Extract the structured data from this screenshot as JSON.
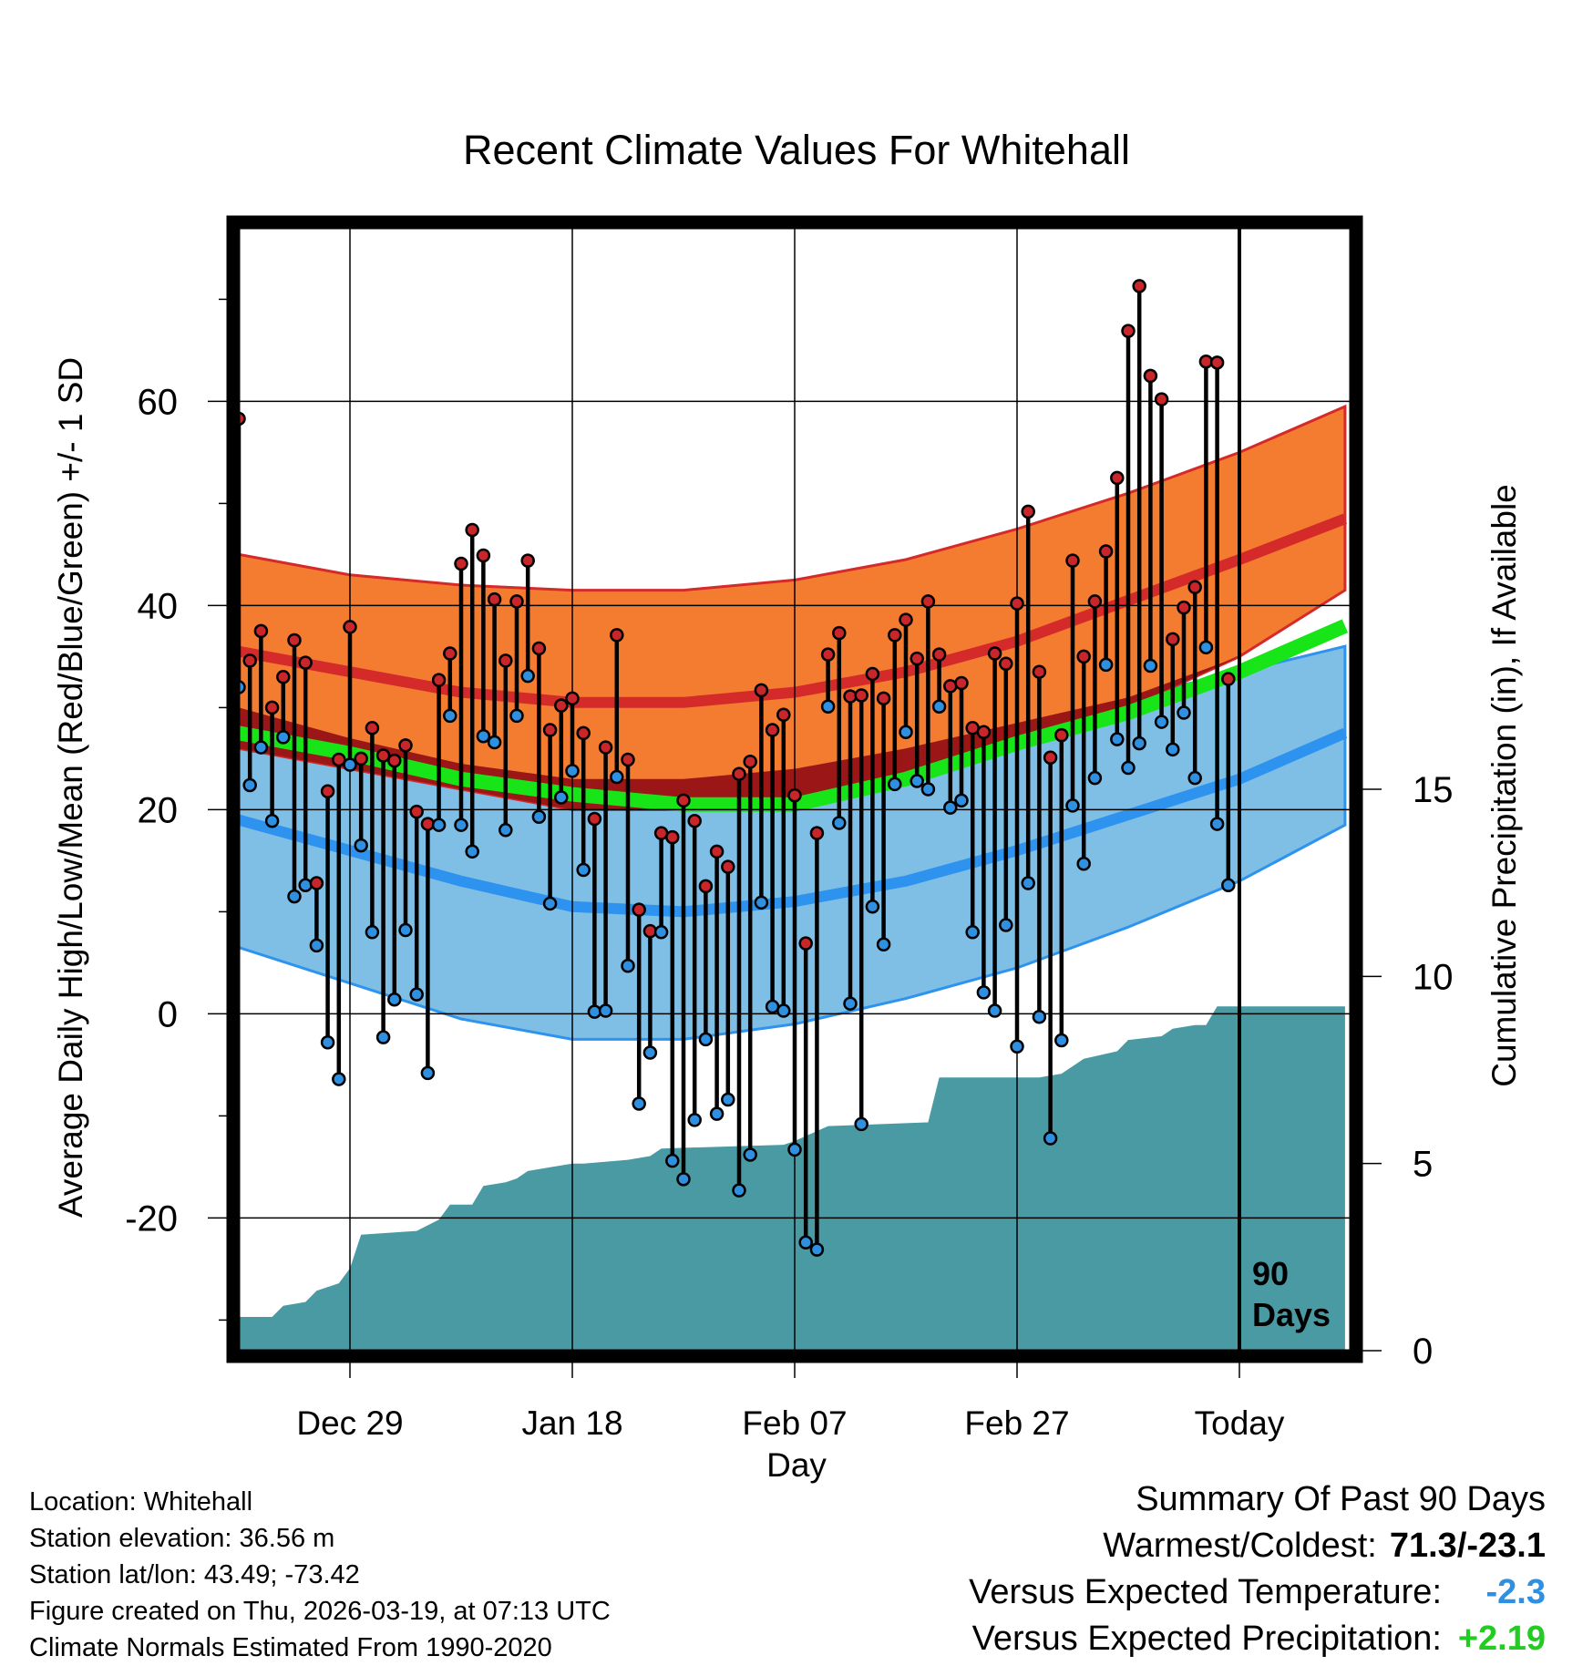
{
  "chart_data": {
    "type": "climate-range",
    "title": "Recent Climate Values For Whitehall",
    "xlabel": "Day",
    "ylabel": "Average Daily High/Low/Mean (Red/Blue/Green) +/- 1 SD",
    "y2label": "Cumulative Precipitation (in), If Available",
    "ylim": [
      -33,
      77
    ],
    "y2lim": [
      0,
      30
    ],
    "x_days": 100,
    "x_tick_labels": [
      {
        "day": 10,
        "label": "Dec 29"
      },
      {
        "day": 30,
        "label": "Jan 18"
      },
      {
        "day": 50,
        "label": "Feb 07"
      },
      {
        "day": 70,
        "label": "Feb 27"
      },
      {
        "day": 90,
        "label": "Today"
      }
    ],
    "y_ticks": [
      -20,
      0,
      20,
      40,
      60
    ],
    "y2_ticks": [
      0,
      5,
      10,
      15
    ],
    "today_marker": {
      "day": 90,
      "label_line1": "90",
      "label_line2": "Days"
    },
    "normals": {
      "days": [
        0,
        10,
        20,
        30,
        40,
        50,
        60,
        70,
        80,
        90,
        99.5
      ],
      "high_mean": [
        35.5,
        33.5,
        31.5,
        30.5,
        30.5,
        31.5,
        33.5,
        36.5,
        40.5,
        44.5,
        48.5
      ],
      "high_upper": [
        45,
        43,
        42,
        41.5,
        41.5,
        42.5,
        44.5,
        47.5,
        51,
        55,
        59.5
      ],
      "high_lower": [
        26,
        24,
        22,
        20,
        20,
        21,
        23,
        26,
        30,
        35,
        41.5
      ],
      "low_mean": [
        19,
        16,
        13,
        10.5,
        10,
        11,
        13,
        16,
        19.5,
        23,
        27.5
      ],
      "low_upper": [
        30,
        27,
        24.5,
        23,
        23,
        24,
        26,
        28.5,
        31,
        33.5,
        36
      ],
      "low_lower": [
        6.5,
        3,
        -0.5,
        -2.5,
        -2.5,
        -1,
        1.5,
        4.5,
        8.5,
        13,
        18.5
      ],
      "mean": [
        27.5,
        25.5,
        23,
        21.5,
        20.5,
        20.5,
        23,
        26.5,
        29.5,
        33.5,
        38
      ]
    },
    "daily": {
      "highs": [
        58.3,
        34.6,
        37.5,
        30,
        33,
        36.6,
        34.4,
        12.8,
        21.8,
        24.9,
        37.9,
        25,
        28,
        25.3,
        24.8,
        26.3,
        19.8,
        18.6,
        32.7,
        35.3,
        44.1,
        47.4,
        44.9,
        40.6,
        34.6,
        40.4,
        44.4,
        35.8,
        27.8,
        30.2,
        30.9,
        27.5,
        19.1,
        26.1,
        37.1,
        24.9,
        10.2,
        8.1,
        17.7,
        17.3,
        20.9,
        18.9,
        12.5,
        15.9,
        14.4,
        23.5,
        24.7,
        31.7,
        27.8,
        29.3,
        21.4,
        6.9,
        17.7,
        35.2,
        37.3,
        31.1,
        31.2,
        33.3,
        30.9,
        37.1,
        38.6,
        34.8,
        40.4,
        35.2,
        32.1,
        32.4,
        28.0,
        27.6,
        35.3,
        34.3,
        40.2,
        49.2,
        33.5,
        25.1,
        27.3,
        44.4,
        35.0,
        40.4,
        45.3,
        52.5,
        66.9,
        71.3,
        62.5,
        60.2,
        36.7,
        39.8,
        41.8,
        63.9,
        63.8,
        32.8
      ],
      "lows": [
        32,
        22.4,
        26.1,
        18.9,
        27.1,
        11.5,
        12.6,
        6.7,
        -2.8,
        -6.4,
        24.4,
        16.5,
        8,
        -2.3,
        1.4,
        8.2,
        1.9,
        -5.8,
        18.5,
        29.2,
        18.5,
        15.9,
        27.2,
        26.6,
        18,
        29.2,
        33.1,
        19.3,
        10.8,
        21.2,
        23.8,
        14.1,
        0.2,
        0.3,
        23.2,
        4.7,
        -8.8,
        -3.8,
        8,
        -14.4,
        -16.2,
        -10.4,
        -2.5,
        -9.8,
        -8.4,
        -17.3,
        -13.8,
        10.9,
        0.7,
        0.3,
        -13.3,
        -22.4,
        -23.1,
        30.1,
        18.7,
        1.0,
        -10.8,
        10.5,
        6.8,
        22.5,
        27.6,
        22.8,
        22.0,
        30.1,
        20.2,
        20.9,
        8.0,
        2.1,
        0.3,
        8.7,
        -3.2,
        12.8,
        -0.3,
        -12.2,
        -2.6,
        20.4,
        14.7,
        23.1,
        34.2,
        26.9,
        24.1,
        26.5,
        34.1,
        28.6,
        25.9,
        29.5,
        23.1,
        35.9,
        18.6,
        12.6
      ]
    },
    "precipitation": {
      "days": [
        0,
        3,
        4,
        6,
        7,
        9,
        10,
        11,
        16,
        18,
        19,
        21,
        22,
        24,
        25,
        26,
        28,
        30,
        31,
        35,
        37,
        38,
        49,
        50,
        53,
        62,
        63,
        72,
        74,
        76,
        79,
        80,
        83,
        84,
        86,
        87,
        88,
        99.5
      ],
      "values": [
        0.9,
        0.9,
        1.2,
        1.3,
        1.6,
        1.8,
        2.2,
        3.1,
        3.2,
        3.5,
        3.9,
        3.9,
        4.4,
        4.5,
        4.6,
        4.8,
        4.9,
        5.0,
        5.0,
        5.1,
        5.2,
        5.4,
        5.5,
        5.6,
        6.0,
        6.1,
        7.3,
        7.3,
        7.4,
        7.8,
        8.0,
        8.3,
        8.4,
        8.6,
        8.7,
        8.7,
        9.2,
        9.2
      ]
    }
  },
  "info": {
    "location": "Location: Whitehall",
    "elevation": "Station elevation: 36.56 m",
    "latlon": "Station lat/lon: 43.49; -73.42",
    "created": "Figure created on Thu, 2026-03-19, at 07:13 UTC",
    "normals": "Climate Normals Estimated From 1990-2020"
  },
  "summary": {
    "title": "Summary Of Past 90 Days",
    "warmest_coldest_label": "Warmest/Coldest:",
    "warmest_coldest_value": "71.3/-23.1",
    "temp_label": "Versus Expected Temperature:",
    "temp_value": "-2.3",
    "precip_label": "Versus Expected Precipitation:",
    "precip_value": "+2.19"
  },
  "colors": {
    "high_band": "#f47c30",
    "high_line": "#d42a2a",
    "low_band": "#7fbfe6",
    "low_line": "#2e93ee",
    "overlap": "#9b1616",
    "mean_line": "#17e517",
    "precip": "#4a9aa4",
    "high_dot": "#c8262a",
    "low_dot": "#2f8fe0",
    "temp_value": "#2f8fe0",
    "precip_value": "#22cc22"
  }
}
